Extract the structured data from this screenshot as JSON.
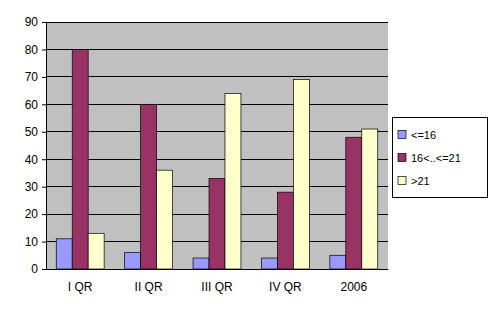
{
  "chart_data": {
    "type": "bar",
    "categories": [
      "I QR",
      "II QR",
      "III QR",
      "IV QR",
      "2006"
    ],
    "series": [
      {
        "name": "<=16",
        "color": "#9999ff",
        "values": [
          11,
          6,
          4,
          4,
          5
        ]
      },
      {
        "name": "16<..<=21",
        "color": "#993366",
        "values": [
          80,
          60,
          33,
          28,
          48
        ]
      },
      {
        "name": ">21",
        "color": "#ffffcc",
        "values": [
          13,
          36,
          64,
          69,
          51
        ]
      }
    ],
    "ylim": [
      0,
      90
    ],
    "yticks": [
      0,
      10,
      20,
      30,
      40,
      50,
      60,
      70,
      80,
      90
    ],
    "grid": true,
    "legend": "right"
  }
}
